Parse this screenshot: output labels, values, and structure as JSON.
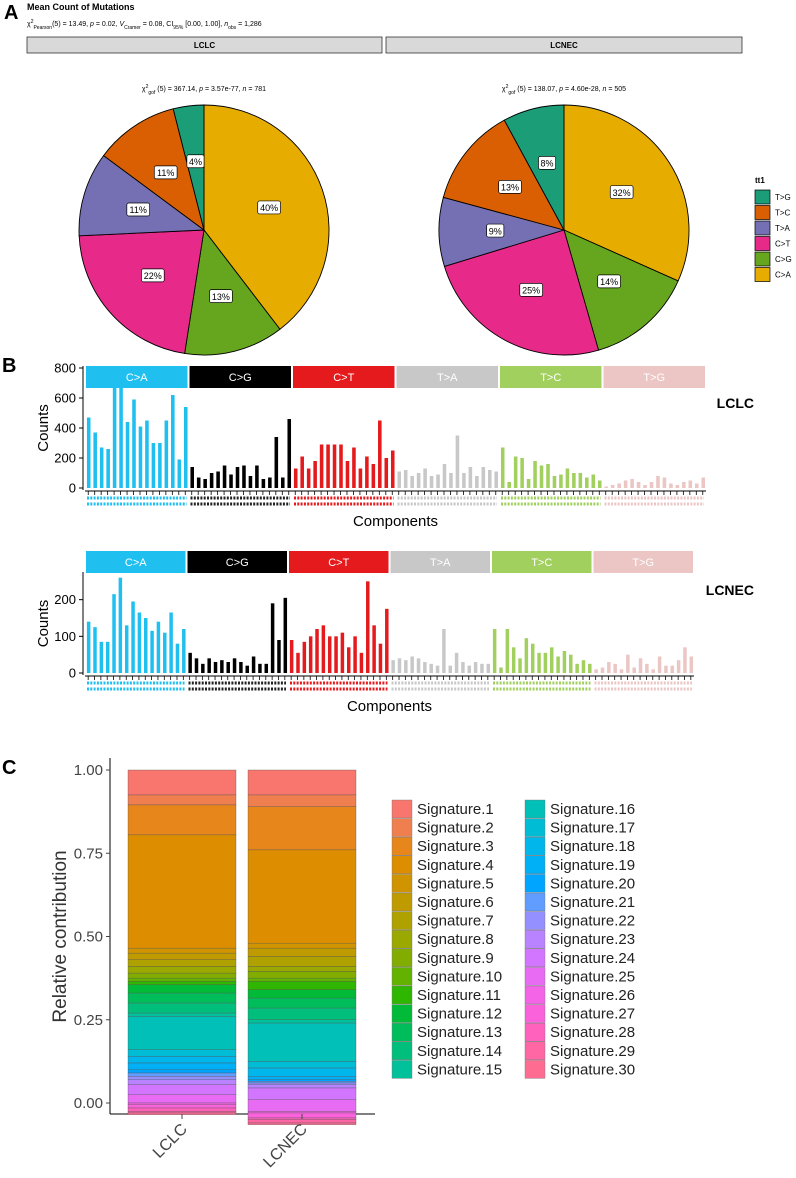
{
  "panel_labels": {
    "a": "A",
    "b": "B",
    "c": "C"
  },
  "colors": {
    "muts": {
      "C>A": "#e6ac00",
      "C>G": "#66a61e",
      "C>T": "#e7298a",
      "T>A": "#7570b3",
      "T>C": "#d95f02",
      "T>G": "#1b9e77"
    },
    "strip": {
      "C>A": "#1fbff0",
      "C>G": "#000000",
      "C>T": "#e41a1c",
      "T>A": "#c8c8c8",
      "T>C": "#a2d05f",
      "T>G": "#ebc6c4"
    }
  },
  "panel_a": {
    "title": "Mean Count of Mutations",
    "stats_parts": [
      {
        "text": "χ",
        "style": "normal"
      },
      {
        "text": "2",
        "style": "sup"
      },
      {
        "text": "Pearson",
        "style": "sub"
      },
      {
        "text": "(5) = 13.49, ",
        "style": "normal"
      },
      {
        "text": "p",
        "style": "italic"
      },
      {
        "text": " = 0.02, ",
        "style": "normal"
      },
      {
        "text": "V",
        "style": "italic"
      },
      {
        "text": "Cramer",
        "style": "sub"
      },
      {
        "text": " = 0.08, CI",
        "style": "normal"
      },
      {
        "text": "95%",
        "style": "sub"
      },
      {
        "text": " [0.00, 1.00], ",
        "style": "normal"
      },
      {
        "text": "n",
        "style": "italic"
      },
      {
        "text": "obs",
        "style": "sub"
      },
      {
        "text": " = 1,286",
        "style": "normal"
      }
    ],
    "legend": {
      "title": "tt1",
      "items": [
        "T>G",
        "T>C",
        "T>A",
        "C>T",
        "C>G",
        "C>A"
      ]
    }
  },
  "chart_data": [
    {
      "type": "pie",
      "title": "LCLC",
      "subtitle_parts": [
        {
          "text": "χ",
          "style": "normal"
        },
        {
          "text": "2",
          "style": "sup"
        },
        {
          "text": "gof",
          "style": "sub"
        },
        {
          "text": " (5) = 367.14, ",
          "style": "normal"
        },
        {
          "text": "p",
          "style": "italic"
        },
        {
          "text": " = 3.57e-77, ",
          "style": "normal"
        },
        {
          "text": "n",
          "style": "italic"
        },
        {
          "text": " = 781",
          "style": "normal"
        }
      ],
      "slices": [
        {
          "label": "C>A",
          "value": 40,
          "text": "40%"
        },
        {
          "label": "C>G",
          "value": 13,
          "text": "13%"
        },
        {
          "label": "C>T",
          "value": 22,
          "text": "22%"
        },
        {
          "label": "T>A",
          "value": 11,
          "text": "11%"
        },
        {
          "label": "T>C",
          "value": 11,
          "text": "11%"
        },
        {
          "label": "T>G",
          "value": 4,
          "text": "4%"
        }
      ]
    },
    {
      "type": "pie",
      "title": "LCNEC",
      "subtitle_parts": [
        {
          "text": "χ",
          "style": "normal"
        },
        {
          "text": "2",
          "style": "sup"
        },
        {
          "text": "gof",
          "style": "sub"
        },
        {
          "text": " (5) = 138.07, ",
          "style": "normal"
        },
        {
          "text": "p",
          "style": "italic"
        },
        {
          "text": " = 4.60e-28, ",
          "style": "normal"
        },
        {
          "text": "n",
          "style": "italic"
        },
        {
          "text": " = 505",
          "style": "normal"
        }
      ],
      "slices": [
        {
          "label": "C>A",
          "value": 32,
          "text": "32%"
        },
        {
          "label": "C>G",
          "value": 14,
          "text": "14%"
        },
        {
          "label": "C>T",
          "value": 25,
          "text": "25%"
        },
        {
          "label": "T>A",
          "value": 9,
          "text": "9%"
        },
        {
          "label": "T>C",
          "value": 13,
          "text": "13%"
        },
        {
          "label": "T>G",
          "value": 8,
          "text": "8%"
        }
      ]
    },
    {
      "type": "bar",
      "sample": "LCLC",
      "xlabel": "Components",
      "ylabel": "Counts",
      "ylim": [
        0,
        800
      ],
      "yticks": [
        0,
        200,
        400,
        600,
        800
      ],
      "categories": [
        "C>A",
        "C>G",
        "C>T",
        "T>A",
        "T>C",
        "T>G"
      ],
      "values": [
        [
          470,
          370,
          270,
          260,
          760,
          770,
          440,
          590,
          410,
          450,
          300,
          300,
          450,
          620,
          190,
          540
        ],
        [
          140,
          70,
          60,
          100,
          110,
          150,
          90,
          140,
          150,
          80,
          150,
          60,
          70,
          340,
          70,
          460
        ],
        [
          130,
          210,
          130,
          180,
          290,
          290,
          290,
          290,
          180,
          270,
          130,
          210,
          160,
          450,
          200,
          250
        ],
        [
          110,
          120,
          80,
          100,
          130,
          80,
          90,
          160,
          100,
          350,
          100,
          140,
          80,
          140,
          120,
          110
        ],
        [
          270,
          40,
          210,
          200,
          60,
          180,
          150,
          160,
          80,
          90,
          130,
          100,
          100,
          70,
          90,
          50
        ],
        [
          10,
          20,
          30,
          50,
          60,
          40,
          20,
          40,
          80,
          70,
          30,
          20,
          40,
          50,
          30,
          70
        ]
      ]
    },
    {
      "type": "bar",
      "sample": "LCNEC",
      "xlabel": "Components",
      "ylabel": "Counts",
      "ylim": [
        0,
        270
      ],
      "yticks": [
        0,
        100,
        200
      ],
      "categories": [
        "C>A",
        "C>G",
        "C>T",
        "T>A",
        "T>C",
        "T>G"
      ],
      "values": [
        [
          140,
          125,
          85,
          85,
          215,
          260,
          130,
          195,
          165,
          150,
          115,
          140,
          110,
          165,
          80,
          120
        ],
        [
          55,
          40,
          25,
          40,
          30,
          35,
          30,
          40,
          30,
          20,
          45,
          25,
          25,
          190,
          90,
          205
        ],
        [
          90,
          55,
          85,
          100,
          120,
          130,
          100,
          100,
          110,
          70,
          100,
          55,
          250,
          130,
          80,
          175
        ],
        [
          35,
          40,
          35,
          45,
          40,
          30,
          25,
          20,
          120,
          20,
          55,
          30,
          20,
          30,
          25,
          25
        ],
        [
          120,
          15,
          120,
          70,
          40,
          95,
          80,
          55,
          55,
          70,
          45,
          60,
          50,
          25,
          35,
          25
        ],
        [
          10,
          15,
          30,
          25,
          10,
          50,
          15,
          40,
          25,
          10,
          45,
          20,
          20,
          35,
          70,
          45
        ]
      ]
    },
    {
      "type": "bar",
      "stacked": true,
      "ylabel": "Relative contribution",
      "xlabel": "",
      "ylim": [
        0,
        1
      ],
      "yticks": [
        "0.00",
        "0.25",
        "0.50",
        "0.75",
        "1.00"
      ],
      "categories": [
        "LCLC",
        "LCNEC"
      ],
      "series": [
        {
          "name": "Signature.1",
          "color": "#f8766d",
          "values": [
            0.075,
            0.075
          ]
        },
        {
          "name": "Signature.2",
          "color": "#f07f4f",
          "values": [
            0.03,
            0.035
          ]
        },
        {
          "name": "Signature.3",
          "color": "#e7861b",
          "values": [
            0.09,
            0.13
          ]
        },
        {
          "name": "Signature.4",
          "color": "#dc8e00",
          "values": [
            0.34,
            0.28
          ]
        },
        {
          "name": "Signature.5",
          "color": "#cf9400",
          "values": [
            0.015,
            0.015
          ]
        },
        {
          "name": "Signature.6",
          "color": "#c09b00",
          "values": [
            0.02,
            0.025
          ]
        },
        {
          "name": "Signature.7",
          "color": "#afa100",
          "values": [
            0.02,
            0.03
          ]
        },
        {
          "name": "Signature.8",
          "color": "#9aa800",
          "values": [
            0.02,
            0.015
          ]
        },
        {
          "name": "Signature.9",
          "color": "#82ad00",
          "values": [
            0.015,
            0.02
          ]
        },
        {
          "name": "Signature.10",
          "color": "#64b200",
          "values": [
            0.01,
            0.01
          ]
        },
        {
          "name": "Signature.11",
          "color": "#2fb600",
          "values": [
            0.01,
            0.025
          ]
        },
        {
          "name": "Signature.12",
          "color": "#00ba38",
          "values": [
            0.025,
            0.025
          ]
        },
        {
          "name": "Signature.13",
          "color": "#00bd5c",
          "values": [
            0.03,
            0.03
          ]
        },
        {
          "name": "Signature.14",
          "color": "#00bf7d",
          "values": [
            0.03,
            0.035
          ]
        },
        {
          "name": "Signature.15",
          "color": "#00c19a",
          "values": [
            0.01,
            0.01
          ]
        },
        {
          "name": "Signature.16",
          "color": "#00c0b8",
          "values": [
            0.1,
            0.115
          ]
        },
        {
          "name": "Signature.17",
          "color": "#00bcd4",
          "values": [
            0.02,
            0.02
          ]
        },
        {
          "name": "Signature.18",
          "color": "#00b6eb",
          "values": [
            0.02,
            0.025
          ]
        },
        {
          "name": "Signature.19",
          "color": "#00b0f6",
          "values": [
            0.02,
            0.01
          ]
        },
        {
          "name": "Signature.20",
          "color": "#00a5ff",
          "values": [
            0.01,
            0.005
          ]
        },
        {
          "name": "Signature.21",
          "color": "#619cff",
          "values": [
            0.01,
            0.005
          ]
        },
        {
          "name": "Signature.22",
          "color": "#9590ff",
          "values": [
            0.01,
            0.005
          ]
        },
        {
          "name": "Signature.23",
          "color": "#b983ff",
          "values": [
            0.015,
            0.01
          ]
        },
        {
          "name": "Signature.24",
          "color": "#d376ff",
          "values": [
            0.03,
            0.035
          ]
        },
        {
          "name": "Signature.25",
          "color": "#e76bf3",
          "values": [
            0.025,
            0.035
          ]
        },
        {
          "name": "Signature.26",
          "color": "#f365e6",
          "values": [
            0.005,
            0.005
          ]
        },
        {
          "name": "Signature.27",
          "color": "#fa62db",
          "values": [
            0.01,
            0.015
          ]
        },
        {
          "name": "Signature.28",
          "color": "#ff62bc",
          "values": [
            0.01,
            0.005
          ]
        },
        {
          "name": "Signature.29",
          "color": "#ff67a4",
          "values": [
            0.005,
            0.01
          ]
        },
        {
          "name": "Signature.30",
          "color": "#ff6c91",
          "values": [
            0.005,
            0.005
          ]
        }
      ]
    }
  ]
}
